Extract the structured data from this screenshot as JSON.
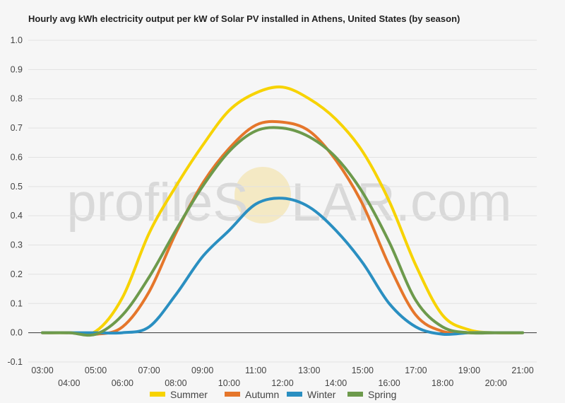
{
  "chart_data": {
    "type": "line",
    "title": "Hourly avg kWh electricity output per kW of Solar PV installed in Athens, United States (by season)",
    "xlabel": "",
    "ylabel": "",
    "ylim": [
      -0.1,
      1.0
    ],
    "yticks": [
      "-0.1",
      "0.0",
      "0.1",
      "0.2",
      "0.3",
      "0.4",
      "0.5",
      "0.6",
      "0.7",
      "0.8",
      "0.9",
      "1.0"
    ],
    "x": [
      "03:00",
      "04:00",
      "05:00",
      "06:00",
      "07:00",
      "08:00",
      "09:00",
      "10:00",
      "11:00",
      "12:00",
      "13:00",
      "14:00",
      "15:00",
      "16:00",
      "17:00",
      "18:00",
      "19:00",
      "20:00",
      "21:00"
    ],
    "grid": true,
    "legend": "bottom",
    "series": [
      {
        "name": "Summer",
        "color": "#f7d300",
        "values": [
          0,
          0,
          0.005,
          0.12,
          0.34,
          0.5,
          0.64,
          0.76,
          0.82,
          0.84,
          0.8,
          0.73,
          0.62,
          0.45,
          0.23,
          0.06,
          0.01,
          0,
          0
        ]
      },
      {
        "name": "Autumn",
        "color": "#e5762b",
        "values": [
          0,
          0,
          -0.005,
          0.02,
          0.14,
          0.34,
          0.51,
          0.63,
          0.71,
          0.72,
          0.69,
          0.59,
          0.44,
          0.23,
          0.06,
          0.005,
          0,
          0,
          0
        ]
      },
      {
        "name": "Winter",
        "color": "#2a8fc1",
        "values": [
          0,
          0,
          0,
          0,
          0.02,
          0.13,
          0.26,
          0.35,
          0.44,
          0.46,
          0.43,
          0.35,
          0.24,
          0.1,
          0.02,
          -0.005,
          0,
          0,
          0
        ]
      },
      {
        "name": "Spring",
        "color": "#6d9a4c",
        "values": [
          0,
          0,
          -0.005,
          0.06,
          0.19,
          0.35,
          0.5,
          0.62,
          0.69,
          0.7,
          0.67,
          0.6,
          0.48,
          0.31,
          0.11,
          0.02,
          0,
          0,
          0
        ]
      }
    ]
  },
  "watermark": {
    "part1": "profileS",
    "part2": "LAR.com"
  }
}
